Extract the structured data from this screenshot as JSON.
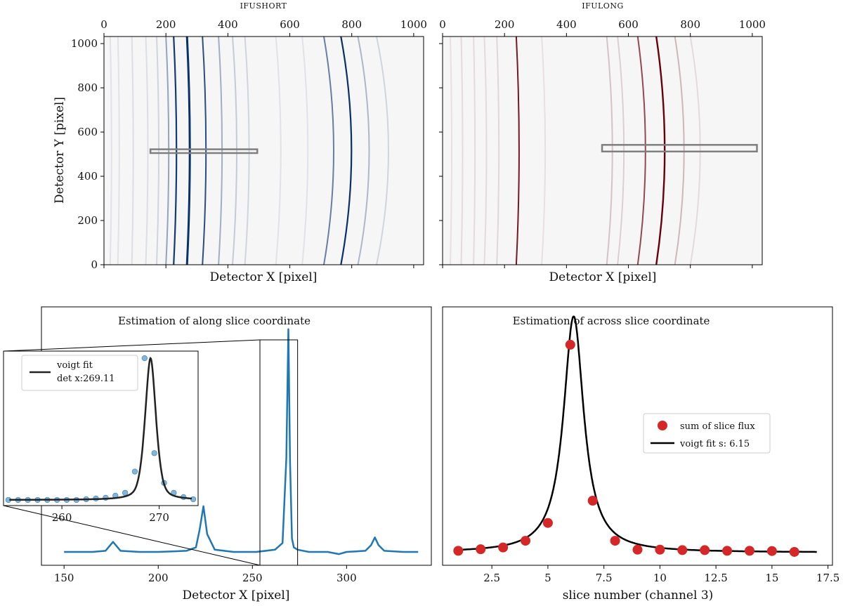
{
  "chart_data": [
    {
      "id": "ifushort",
      "type": "heatmap",
      "title": "IFUSHORT",
      "xlabel": "Detector X [pixel]",
      "ylabel": "Detector Y [pixel]",
      "xlim": [
        0,
        1032
      ],
      "ylim": [
        0,
        1032
      ],
      "xticks": [
        0,
        200,
        400,
        600,
        800,
        1000
      ],
      "yticks": [
        0,
        200,
        400,
        600,
        800,
        1000
      ],
      "xtick_position": "top",
      "colormap": "Blues",
      "line_color": "#08306b",
      "lines": [
        {
          "x": 20,
          "curve": -2,
          "strength": 0.08,
          "width": 2
        },
        {
          "x": 45,
          "curve": -2,
          "strength": 0.08,
          "width": 2
        },
        {
          "x": 90,
          "curve": -2,
          "strength": 0.1,
          "width": 2
        },
        {
          "x": 135,
          "curve": -3,
          "strength": 0.1,
          "width": 2
        },
        {
          "x": 170,
          "curve": -3,
          "strength": 0.15,
          "width": 2
        },
        {
          "x": 200,
          "curve": -4,
          "strength": 0.4,
          "width": 2
        },
        {
          "x": 225,
          "curve": -4,
          "strength": 0.95,
          "width": 2.2
        },
        {
          "x": 268,
          "curve": -4,
          "strength": 1.0,
          "width": 3
        },
        {
          "x": 318,
          "curve": -5,
          "strength": 0.85,
          "width": 2
        },
        {
          "x": 370,
          "curve": -5,
          "strength": 0.35,
          "width": 2
        },
        {
          "x": 415,
          "curve": -6,
          "strength": 0.2,
          "width": 2
        },
        {
          "x": 455,
          "curve": -6,
          "strength": 0.15,
          "width": 2
        },
        {
          "x": 555,
          "curve": -7,
          "strength": 0.08,
          "width": 2
        },
        {
          "x": 640,
          "curve": -8,
          "strength": 0.08,
          "width": 2
        },
        {
          "x": 710,
          "curve": -14,
          "strength": 0.6,
          "width": 2
        },
        {
          "x": 765,
          "curve": -15,
          "strength": 1.0,
          "width": 2.2
        },
        {
          "x": 820,
          "curve": -16,
          "strength": 0.3,
          "width": 2
        },
        {
          "x": 880,
          "curve": -17,
          "strength": 0.15,
          "width": 2
        }
      ],
      "box": {
        "x0": 150,
        "x1": 495,
        "y0": 505,
        "y1": 522
      }
    },
    {
      "id": "ifulong",
      "type": "heatmap",
      "title": "IFULONG",
      "xlabel": "Detector X [pixel]",
      "xlim": [
        0,
        1032
      ],
      "ylim": [
        0,
        1032
      ],
      "xticks": [
        0,
        200,
        400,
        600,
        800,
        1000
      ],
      "yticks": [
        0,
        200,
        400,
        600,
        800,
        1000
      ],
      "xtick_position": "top",
      "colormap": "Reds",
      "line_color": "#67000d",
      "lines": [
        {
          "x": 25,
          "curve": -2,
          "strength": 0.08,
          "width": 2
        },
        {
          "x": 60,
          "curve": -2,
          "strength": 0.1,
          "width": 2
        },
        {
          "x": 100,
          "curve": -2,
          "strength": 0.1,
          "width": 2
        },
        {
          "x": 135,
          "curve": -3,
          "strength": 0.1,
          "width": 2
        },
        {
          "x": 175,
          "curve": -3,
          "strength": 0.12,
          "width": 2
        },
        {
          "x": 238,
          "curve": -4,
          "strength": 0.9,
          "width": 2
        },
        {
          "x": 320,
          "curve": -5,
          "strength": 0.08,
          "width": 2
        },
        {
          "x": 530,
          "curve": -8,
          "strength": 0.2,
          "width": 2
        },
        {
          "x": 565,
          "curve": -9,
          "strength": 0.15,
          "width": 2
        },
        {
          "x": 630,
          "curve": -11,
          "strength": 0.7,
          "width": 2
        },
        {
          "x": 690,
          "curve": -12,
          "strength": 1.0,
          "width": 2.4
        },
        {
          "x": 750,
          "curve": -13,
          "strength": 0.25,
          "width": 2
        },
        {
          "x": 800,
          "curve": -14,
          "strength": 0.1,
          "width": 2
        }
      ],
      "box": {
        "x0": 515,
        "x1": 1015,
        "y0": 512,
        "y1": 542
      }
    },
    {
      "id": "along",
      "type": "line",
      "title": "Estimation of along slice coordinate",
      "xlabel": "Detector X [pixel]",
      "ylabel": "",
      "xlim": [
        138,
        345
      ],
      "ylim": [
        -0.06,
        1.1
      ],
      "xticks": [
        150,
        200,
        250,
        300
      ],
      "color": "#1f77b4",
      "x": [
        150,
        165,
        172,
        176,
        180,
        190,
        200,
        215,
        220,
        222,
        224,
        226,
        230,
        240,
        252,
        262,
        266,
        268,
        269.1,
        270,
        271,
        272,
        274,
        280,
        290,
        296,
        300,
        310,
        313,
        315,
        317,
        320,
        330,
        338
      ],
      "y": [
        0.0,
        0.0,
        0.005,
        0.045,
        0.005,
        0.0,
        0.0,
        0.005,
        0.02,
        0.1,
        0.205,
        0.08,
        0.01,
        0.0,
        0.0,
        0.01,
        0.04,
        0.42,
        1.0,
        0.4,
        0.06,
        0.02,
        0.01,
        0.0,
        0.0,
        -0.01,
        0.0,
        0.005,
        0.03,
        0.065,
        0.03,
        0.005,
        0.0,
        0.0
      ],
      "zoom_box": {
        "x0": 254,
        "x1": 274
      },
      "inset": {
        "xlim": [
          254,
          274
        ],
        "ylim": [
          -0.04,
          1.05
        ],
        "xticks": [
          260,
          270
        ],
        "points_x": [
          254.5,
          255.5,
          256.5,
          257.5,
          258.5,
          259.5,
          260.5,
          261.5,
          262.5,
          263.5,
          264.5,
          265.5,
          266.5,
          267.5,
          268.5,
          269.5,
          270.5,
          271.5,
          272.5,
          273.5
        ],
        "points_y": [
          0.0,
          0.0,
          0.0,
          0.0,
          0.0,
          0.0,
          0.0,
          0.0,
          0.005,
          0.01,
          0.015,
          0.03,
          0.05,
          0.2,
          1.0,
          0.33,
          0.12,
          0.05,
          0.02,
          0.005
        ],
        "fit_center": 269.11,
        "fit_sigma": 0.6,
        "fit_gamma": 0.6,
        "fit_color": "#222222",
        "legend": [
          "voigt fit",
          "det x:269.11"
        ]
      }
    },
    {
      "id": "across",
      "type": "scatter",
      "title": "Estimation of across slice coordinate",
      "xlabel": "slice number (channel 3)",
      "xlim": [
        0.3,
        17.7
      ],
      "ylim": [
        -0.06,
        1.1
      ],
      "xticks": [
        2.5,
        5.0,
        7.5,
        10.0,
        12.5,
        15.0,
        17.5
      ],
      "x": [
        1,
        2,
        3,
        4,
        5,
        6,
        7,
        8,
        9,
        10,
        11,
        12,
        13,
        14,
        15,
        16
      ],
      "y": [
        0.005,
        0.012,
        0.02,
        0.05,
        0.13,
        0.93,
        0.23,
        0.05,
        0.01,
        0.01,
        0.008,
        0.008,
        0.005,
        0.005,
        0.004,
        0.0
      ],
      "marker_color": "#d62728",
      "fit_center": 6.15,
      "fit_gamma": 0.55,
      "fit_range": [
        1,
        17
      ],
      "fit_color": "#000000",
      "legend": [
        "sum of slice flux",
        "voigt fit s:  6.15"
      ]
    }
  ]
}
